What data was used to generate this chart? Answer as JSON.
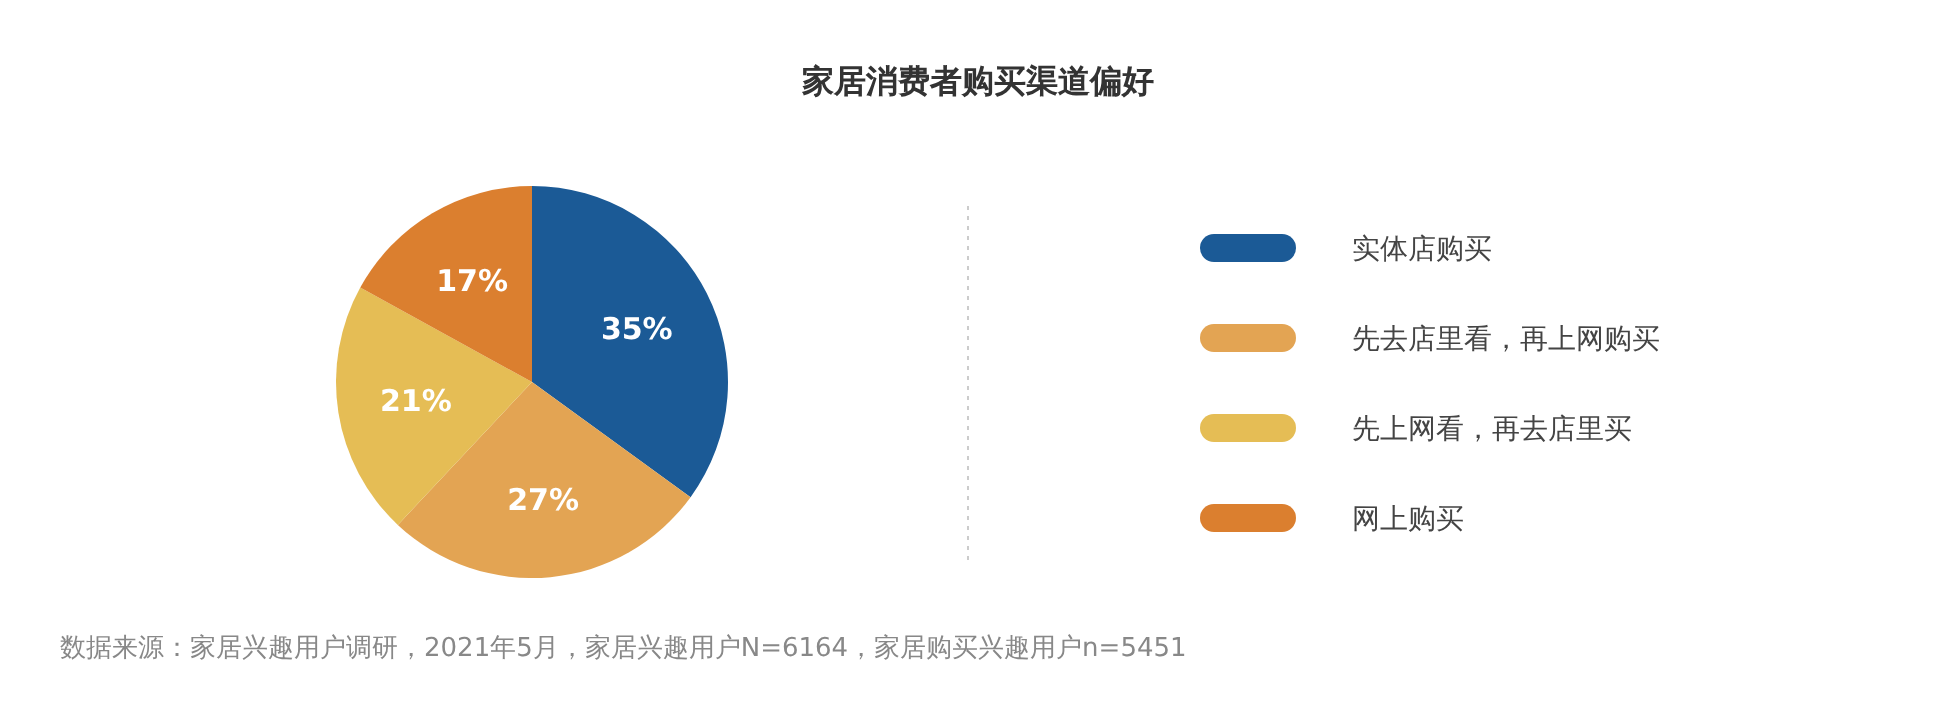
{
  "chart_data": {
    "type": "pie",
    "title": "家居消费者购买渠道偏好",
    "categories": [
      "实体店购买",
      "先去店里看，再上网购买",
      "先上网看，再去店里买",
      "网上购买"
    ],
    "values": [
      35,
      27,
      21,
      17
    ],
    "colors": [
      "#1b5a96",
      "#e3a453",
      "#e5bd55",
      "#db7f2f"
    ],
    "value_labels": [
      "35%",
      "27%",
      "21%",
      "17%"
    ],
    "legend": "right",
    "annotations": [
      "数据来源：家居兴趣用户调研，2021年5月，家居兴趣用户N=6164，家居购买兴趣用户n=5451"
    ]
  }
}
